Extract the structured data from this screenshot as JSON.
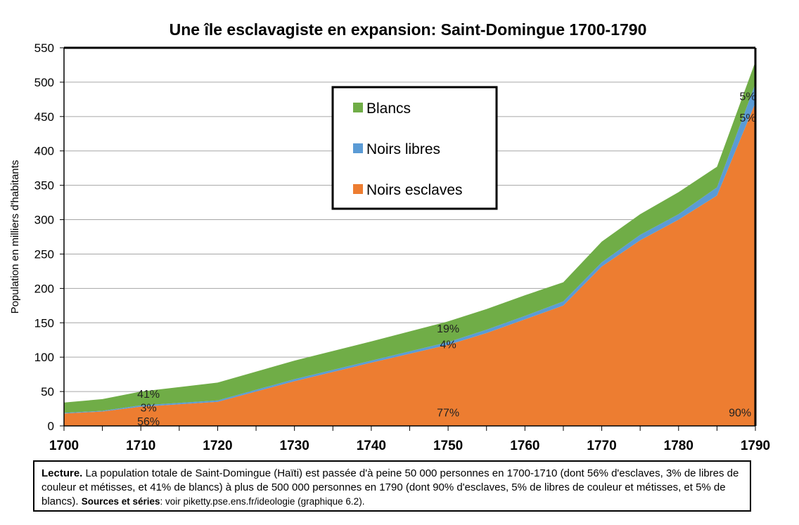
{
  "chart_data": {
    "type": "area",
    "stacked": true,
    "title": "Une île esclavagiste en expansion: Saint-Domingue 1700-1790",
    "ylabel": "Population en milliers d'habitants",
    "xlabel": "",
    "xlim": [
      1700,
      1790
    ],
    "ylim": [
      0,
      550
    ],
    "xticks": [
      "1700",
      "1710",
      "1720",
      "1730",
      "1740",
      "1750",
      "1760",
      "1770",
      "1780",
      "1790"
    ],
    "yticks": [
      "0",
      "50",
      "100",
      "150",
      "200",
      "250",
      "300",
      "350",
      "400",
      "450",
      "500",
      "550"
    ],
    "x": [
      1700,
      1705,
      1710,
      1720,
      1730,
      1740,
      1750,
      1755,
      1760,
      1765,
      1770,
      1775,
      1780,
      1785,
      1790
    ],
    "series": [
      {
        "name": "Noirs esclaves",
        "color": "#ed7d31",
        "values": [
          18,
          21,
          28,
          35,
          65,
          92,
          118,
          135,
          155,
          175,
          232,
          270,
          300,
          335,
          470
        ]
      },
      {
        "name": "Noirs libres",
        "color": "#5b9bd5",
        "values": [
          1,
          1,
          2,
          2,
          3,
          3,
          4,
          5,
          5,
          6,
          6,
          8,
          8,
          12,
          28
        ]
      },
      {
        "name": "Blancs",
        "color": "#70ad47",
        "values": [
          15,
          17,
          20,
          26,
          27,
          28,
          30,
          30,
          30,
          28,
          30,
          30,
          32,
          30,
          32
        ]
      }
    ],
    "legend": {
      "position": "center-top",
      "items": [
        "Blancs",
        "Noirs libres",
        "Noirs esclaves"
      ]
    },
    "annotations": [
      {
        "text": "41%",
        "x": 1711,
        "y": 47
      },
      {
        "text": "3%",
        "x": 1711,
        "y": 27
      },
      {
        "text": "56%",
        "x": 1711,
        "y": 7
      },
      {
        "text": "19%",
        "x": 1750,
        "y": 142
      },
      {
        "text": "4%",
        "x": 1750,
        "y": 119
      },
      {
        "text": "77%",
        "x": 1750,
        "y": 20
      },
      {
        "text": "5%",
        "x": 1789,
        "y": 480
      },
      {
        "text": "5%",
        "x": 1789,
        "y": 449
      },
      {
        "text": "90%",
        "x": 1788,
        "y": 20
      }
    ],
    "grid": "horizontal"
  },
  "caption": {
    "lead": "Lecture.",
    "text": " La population totale de Saint-Domingue (Haïti) est passée d'à peine 50 000 personnes en 1700-1710 (dont 56% d'esclaves, 3% de libres de couleur et métisses, et 41% de blancs) à plus de 500 000 personnes en 1790 (dont 90% d'esclaves, 5% de libres de couleur et métisses, et 5% de blancs). ",
    "sources_label": "Sources et séries",
    "sources_text": ": voir piketty.pse.ens.fr/ideologie (graphique 6.2)."
  }
}
